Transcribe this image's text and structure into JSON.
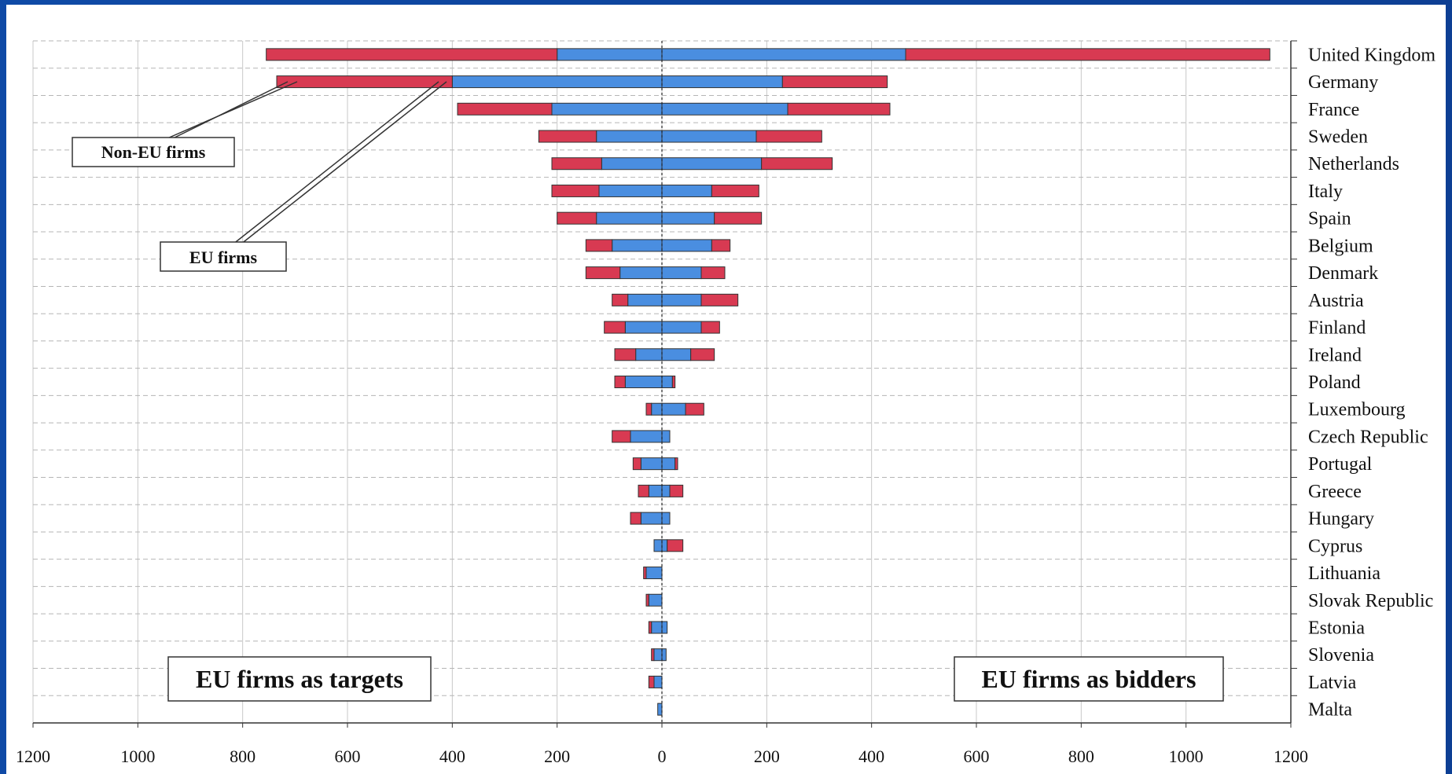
{
  "chart_data": {
    "type": "bar",
    "orientation": "horizontal",
    "stacked": true,
    "categories": [
      "United Kingdom",
      "Germany",
      "France",
      "Sweden",
      "Netherlands",
      "Italy",
      "Spain",
      "Belgium",
      "Denmark",
      "Austria",
      "Finland",
      "Ireland",
      "Poland",
      "Luxembourg",
      "Czech Republic",
      "Portugal",
      "Greece",
      "Hungary",
      "Cyprus",
      "Lithuania",
      "Slovak Republic",
      "Estonia",
      "Slovenia",
      "Latvia",
      "Malta"
    ],
    "targets": {
      "eu": [
        200,
        400,
        210,
        125,
        115,
        120,
        125,
        95,
        80,
        65,
        70,
        50,
        70,
        20,
        60,
        40,
        25,
        40,
        15,
        30,
        25,
        20,
        15,
        15,
        8
      ],
      "non_eu": [
        555,
        335,
        180,
        110,
        95,
        90,
        75,
        50,
        65,
        30,
        40,
        40,
        20,
        10,
        35,
        15,
        20,
        20,
        0,
        5,
        5,
        5,
        5,
        10,
        0
      ]
    },
    "bidders": {
      "eu": [
        465,
        230,
        240,
        180,
        190,
        95,
        100,
        95,
        75,
        75,
        75,
        55,
        20,
        45,
        15,
        25,
        15,
        15,
        10,
        0,
        0,
        10,
        8,
        0,
        0
      ],
      "non_eu": [
        695,
        200,
        195,
        125,
        135,
        90,
        90,
        35,
        45,
        70,
        35,
        45,
        5,
        35,
        0,
        5,
        25,
        0,
        30,
        0,
        0,
        0,
        0,
        0,
        0
      ]
    },
    "colors": {
      "eu": "#4a8ee0",
      "non_eu": "#d83a52"
    },
    "x_ticks": [
      1200,
      1000,
      800,
      600,
      400,
      200,
      0,
      200,
      400,
      600,
      800,
      1000,
      1200
    ],
    "xlim": [
      -1200,
      1200
    ],
    "grid": true,
    "annotations": {
      "non_eu": "Non-EU firms",
      "eu": "EU firms",
      "left_panel": "EU firms as targets",
      "right_panel": "EU firms as bidders"
    }
  }
}
